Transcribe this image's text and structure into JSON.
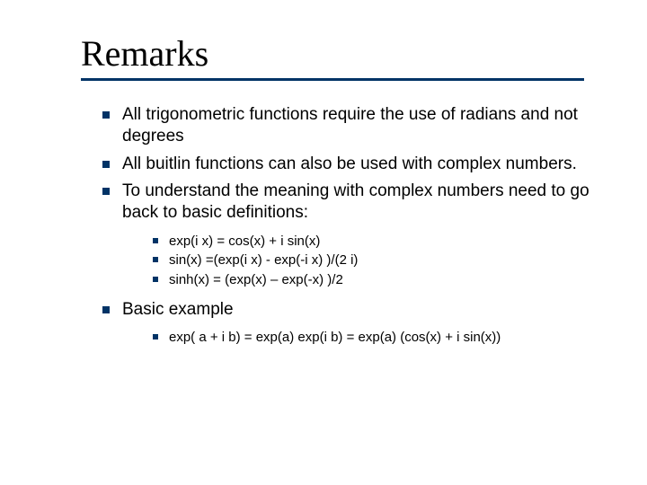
{
  "colors": {
    "bullet": "#003366",
    "underline": "#003366",
    "text": "#000000",
    "background": "#ffffff"
  },
  "typography": {
    "title_family": "Times New Roman",
    "body_family": "Verdana",
    "title_size_pt": 40,
    "body_size_pt": 19,
    "sub_size_pt": 15
  },
  "title": "Remarks",
  "bullets": {
    "b1": "All trigonometric functions require the use of radians and not degrees",
    "b2": "All buitlin functions can also be used with complex numbers.",
    "b3": "To understand the meaning with complex numbers need to go back to basic definitions:",
    "b3_sub": {
      "s1": "exp(i x) = cos(x) + i  sin(x)",
      "s2": "sin(x) =(exp(i x) - exp(-i x) )/(2 i)",
      "s3": "sinh(x) = (exp(x) – exp(-x) )/2"
    },
    "b4": "Basic example",
    "b4_sub": {
      "s1": "exp( a + i b) = exp(a) exp(i b) = exp(a) (cos(x) + i  sin(x))"
    }
  }
}
